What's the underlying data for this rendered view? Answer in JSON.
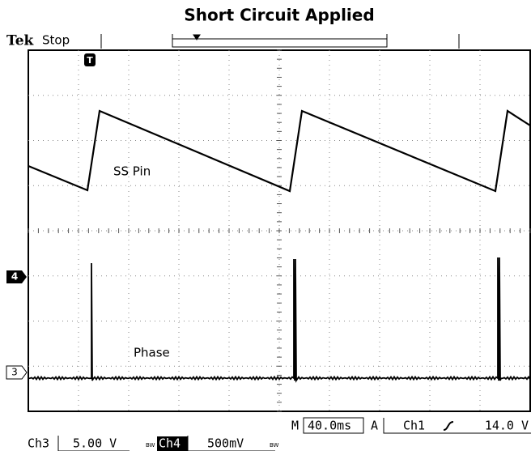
{
  "title": "Short Circuit Applied",
  "top_bar": {
    "brand": "Tek",
    "state": "Stop",
    "trigger_marker": "T"
  },
  "traces": {
    "ss_pin": "SS Pin",
    "phase": "Phase"
  },
  "channel_markers": {
    "ch4": "4",
    "ch3": "3"
  },
  "status": {
    "timebase_prefix": "M",
    "timebase": "40.0ms",
    "trigger_prefix": "A",
    "trigger_source": "Ch1",
    "trigger_level": "14.0 V",
    "ch3_name": "Ch3",
    "ch3_scale": "5.00 V",
    "ch4_name": "Ch4",
    "ch4_scale": "500mV",
    "bw_mark": "BW"
  }
}
